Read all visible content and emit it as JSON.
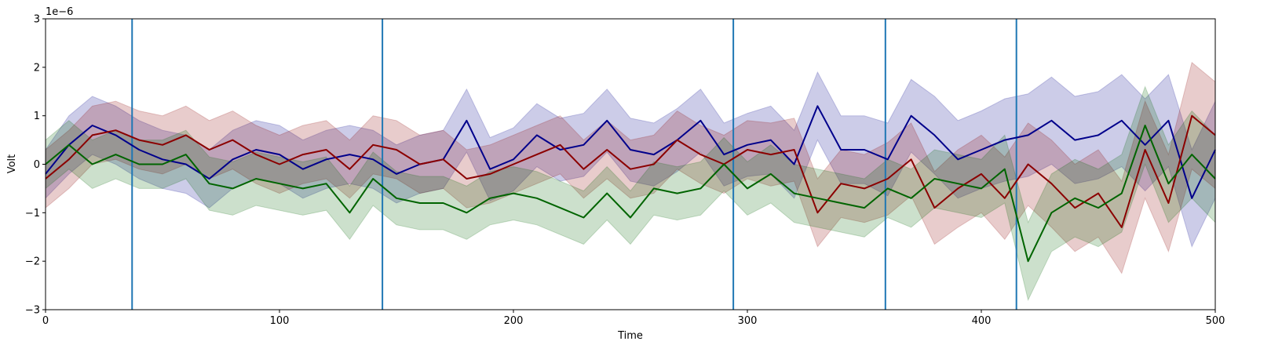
{
  "chart_data": {
    "type": "line",
    "title": "",
    "xlabel": "Time",
    "ylabel": "Volt",
    "y_offset_label": "1e−6",
    "xlim": [
      0,
      500
    ],
    "ylim": [
      -3,
      3
    ],
    "x_ticks": [
      0,
      100,
      200,
      300,
      400,
      500
    ],
    "x_tick_labels": [
      "0",
      "100",
      "200",
      "300",
      "400",
      "500"
    ],
    "y_ticks": [
      -3,
      -2,
      -1,
      0,
      1,
      2,
      3
    ],
    "y_tick_labels": [
      "−3",
      "−2",
      "−1",
      "0",
      "1",
      "2",
      "3"
    ],
    "grid": false,
    "legend": "none",
    "vertical_lines": {
      "color": "#1f77b4",
      "x": [
        37,
        144,
        294,
        359,
        415
      ]
    },
    "series": [
      {
        "color": "#00008b",
        "fill_color": "#00008b",
        "x": [
          0,
          10,
          20,
          30,
          40,
          50,
          60,
          70,
          80,
          90,
          100,
          110,
          120,
          130,
          140,
          150,
          160,
          170,
          180,
          190,
          200,
          210,
          220,
          230,
          240,
          250,
          260,
          270,
          280,
          290,
          300,
          310,
          320,
          330,
          340,
          350,
          360,
          370,
          380,
          390,
          400,
          410,
          420,
          430,
          440,
          450,
          460,
          470,
          480,
          490,
          500
        ],
        "y": [
          -0.2,
          0.4,
          0.8,
          0.6,
          0.3,
          0.1,
          0.0,
          -0.3,
          0.1,
          0.3,
          0.2,
          -0.1,
          0.1,
          0.2,
          0.1,
          -0.2,
          0.0,
          0.1,
          0.9,
          -0.1,
          0.1,
          0.6,
          0.3,
          0.4,
          0.9,
          0.3,
          0.2,
          0.5,
          0.9,
          0.2,
          0.4,
          0.5,
          0.0,
          1.2,
          0.3,
          0.3,
          0.1,
          1.0,
          0.6,
          0.1,
          0.3,
          0.5,
          0.6,
          0.9,
          0.5,
          0.6,
          0.9,
          0.4,
          0.9,
          -0.7,
          0.3
        ],
        "band": [
          0.5,
          0.6,
          0.6,
          0.6,
          0.6,
          0.6,
          0.6,
          0.6,
          0.6,
          0.6,
          0.6,
          0.6,
          0.6,
          0.6,
          0.6,
          0.6,
          0.6,
          0.6,
          0.65,
          0.65,
          0.65,
          0.65,
          0.65,
          0.65,
          0.65,
          0.65,
          0.65,
          0.65,
          0.65,
          0.65,
          0.65,
          0.7,
          0.7,
          0.7,
          0.7,
          0.7,
          0.75,
          0.75,
          0.8,
          0.8,
          0.8,
          0.85,
          0.85,
          0.9,
          0.9,
          0.9,
          0.95,
          0.95,
          0.95,
          1.0,
          1.0
        ]
      },
      {
        "color": "#8b0000",
        "fill_color": "#8b0000",
        "x": [
          0,
          10,
          20,
          30,
          40,
          50,
          60,
          70,
          80,
          90,
          100,
          110,
          120,
          130,
          140,
          150,
          160,
          170,
          180,
          190,
          200,
          210,
          220,
          230,
          240,
          250,
          260,
          270,
          280,
          290,
          300,
          310,
          320,
          330,
          340,
          350,
          360,
          370,
          380,
          390,
          400,
          410,
          420,
          430,
          440,
          450,
          460,
          470,
          480,
          490,
          500
        ],
        "y": [
          -0.3,
          0.1,
          0.6,
          0.7,
          0.5,
          0.4,
          0.6,
          0.3,
          0.5,
          0.2,
          0.0,
          0.2,
          0.3,
          -0.1,
          0.4,
          0.3,
          0.0,
          0.1,
          -0.3,
          -0.2,
          0.0,
          0.2,
          0.4,
          -0.1,
          0.3,
          -0.1,
          0.0,
          0.5,
          0.2,
          0.0,
          0.3,
          0.2,
          0.3,
          -1.0,
          -0.4,
          -0.5,
          -0.3,
          0.1,
          -0.9,
          -0.5,
          -0.2,
          -0.7,
          0.0,
          -0.4,
          -0.9,
          -0.6,
          -1.3,
          0.3,
          -0.8,
          1.0,
          0.6
        ],
        "band": [
          0.6,
          0.6,
          0.6,
          0.6,
          0.6,
          0.6,
          0.6,
          0.6,
          0.6,
          0.6,
          0.6,
          0.6,
          0.6,
          0.6,
          0.6,
          0.6,
          0.6,
          0.6,
          0.6,
          0.6,
          0.6,
          0.6,
          0.6,
          0.6,
          0.6,
          0.6,
          0.6,
          0.6,
          0.6,
          0.6,
          0.6,
          0.65,
          0.65,
          0.7,
          0.7,
          0.7,
          0.75,
          0.75,
          0.75,
          0.8,
          0.8,
          0.85,
          0.85,
          0.9,
          0.9,
          0.9,
          0.95,
          1.0,
          1.0,
          1.1,
          1.1
        ]
      },
      {
        "color": "#006400",
        "fill_color": "#006400",
        "x": [
          0,
          10,
          20,
          30,
          40,
          50,
          60,
          70,
          80,
          90,
          100,
          110,
          120,
          130,
          140,
          150,
          160,
          170,
          180,
          190,
          200,
          210,
          220,
          230,
          240,
          250,
          260,
          270,
          280,
          290,
          300,
          310,
          320,
          330,
          340,
          350,
          360,
          370,
          380,
          390,
          400,
          410,
          420,
          430,
          440,
          450,
          460,
          470,
          480,
          490,
          500
        ],
        "y": [
          0.0,
          0.4,
          0.0,
          0.2,
          0.0,
          0.0,
          0.2,
          -0.4,
          -0.5,
          -0.3,
          -0.4,
          -0.5,
          -0.4,
          -1.0,
          -0.3,
          -0.7,
          -0.8,
          -0.8,
          -1.0,
          -0.7,
          -0.6,
          -0.7,
          -0.9,
          -1.1,
          -0.6,
          -1.1,
          -0.5,
          -0.6,
          -0.5,
          0.0,
          -0.5,
          -0.2,
          -0.6,
          -0.7,
          -0.8,
          -0.9,
          -0.5,
          -0.7,
          -0.3,
          -0.4,
          -0.5,
          -0.1,
          -2.0,
          -1.0,
          -0.7,
          -0.9,
          -0.6,
          0.8,
          -0.4,
          0.2,
          -0.3
        ],
        "band": [
          0.5,
          0.5,
          0.5,
          0.5,
          0.5,
          0.5,
          0.5,
          0.55,
          0.55,
          0.55,
          0.55,
          0.55,
          0.55,
          0.55,
          0.55,
          0.55,
          0.55,
          0.55,
          0.55,
          0.55,
          0.55,
          0.55,
          0.55,
          0.55,
          0.55,
          0.55,
          0.55,
          0.55,
          0.55,
          0.55,
          0.55,
          0.6,
          0.6,
          0.6,
          0.6,
          0.6,
          0.6,
          0.6,
          0.6,
          0.6,
          0.6,
          0.7,
          0.8,
          0.8,
          0.8,
          0.8,
          0.8,
          0.8,
          0.8,
          0.9,
          0.9
        ]
      }
    ]
  }
}
